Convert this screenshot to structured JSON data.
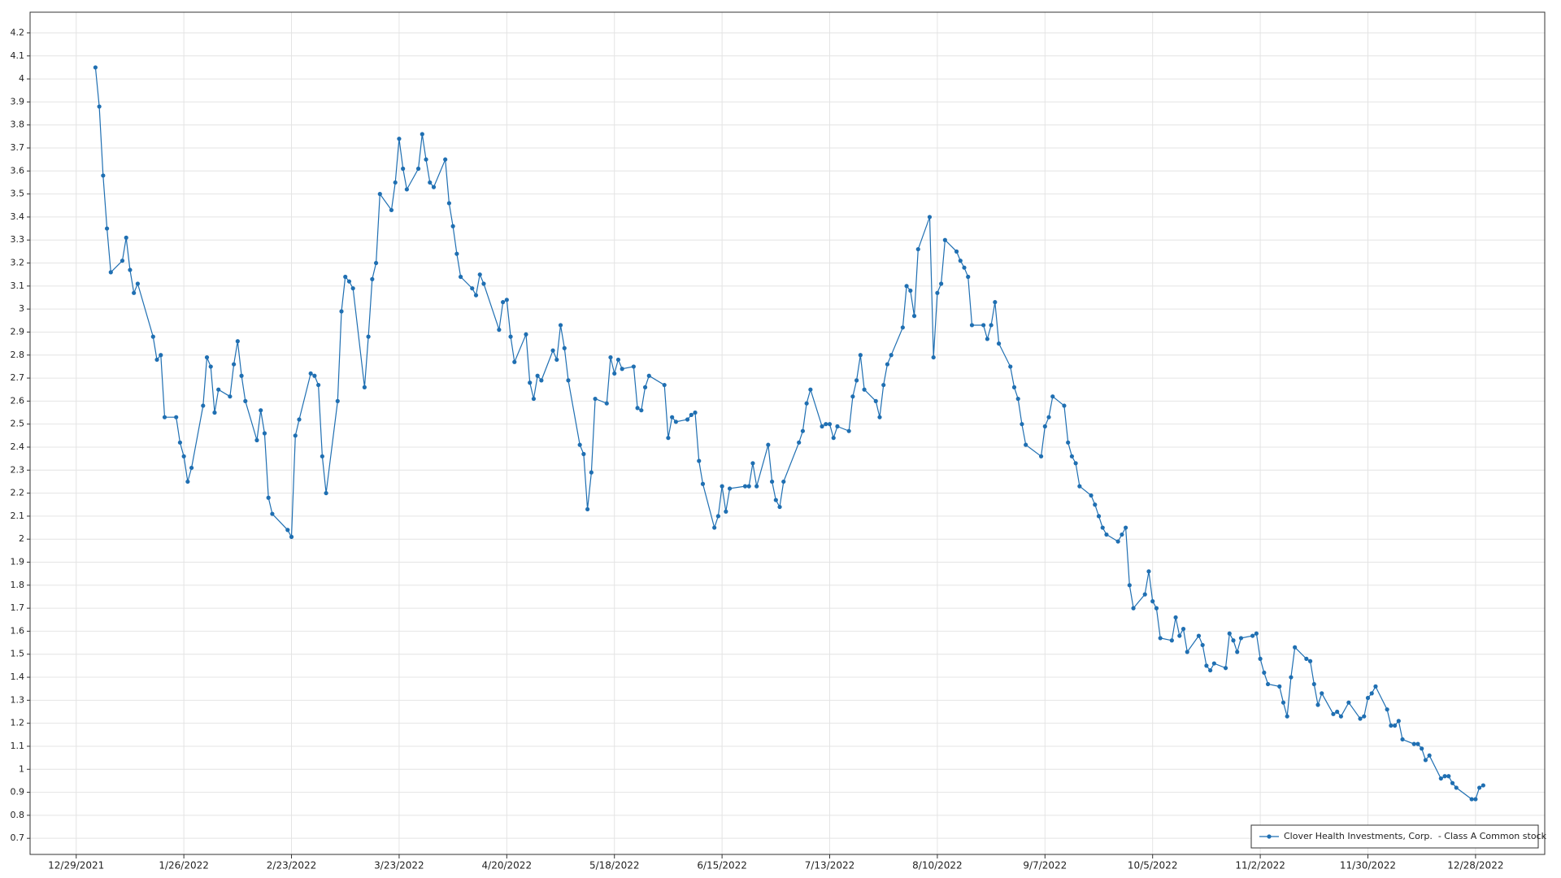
{
  "chart_data": {
    "type": "line",
    "x": [
      "2022-01-03",
      "2022-01-04",
      "2022-01-05",
      "2022-01-06",
      "2022-01-07",
      "2022-01-10",
      "2022-01-11",
      "2022-01-12",
      "2022-01-13",
      "2022-01-14",
      "2022-01-18",
      "2022-01-19",
      "2022-01-20",
      "2022-01-21",
      "2022-01-24",
      "2022-01-25",
      "2022-01-26",
      "2022-01-27",
      "2022-01-28",
      "2022-01-31",
      "2022-02-01",
      "2022-02-02",
      "2022-02-03",
      "2022-02-04",
      "2022-02-07",
      "2022-02-08",
      "2022-02-09",
      "2022-02-10",
      "2022-02-11",
      "2022-02-14",
      "2022-02-15",
      "2022-02-16",
      "2022-02-17",
      "2022-02-18",
      "2022-02-22",
      "2022-02-23",
      "2022-02-24",
      "2022-02-25",
      "2022-02-28",
      "2022-03-01",
      "2022-03-02",
      "2022-03-03",
      "2022-03-04",
      "2022-03-07",
      "2022-03-08",
      "2022-03-09",
      "2022-03-10",
      "2022-03-11",
      "2022-03-14",
      "2022-03-15",
      "2022-03-16",
      "2022-03-17",
      "2022-03-18",
      "2022-03-21",
      "2022-03-22",
      "2022-03-23",
      "2022-03-24",
      "2022-03-25",
      "2022-03-28",
      "2022-03-29",
      "2022-03-30",
      "2022-03-31",
      "2022-04-01",
      "2022-04-04",
      "2022-04-05",
      "2022-04-06",
      "2022-04-07",
      "2022-04-08",
      "2022-04-11",
      "2022-04-12",
      "2022-04-13",
      "2022-04-14",
      "2022-04-18",
      "2022-04-19",
      "2022-04-20",
      "2022-04-21",
      "2022-04-22",
      "2022-04-25",
      "2022-04-26",
      "2022-04-27",
      "2022-04-28",
      "2022-04-29",
      "2022-05-02",
      "2022-05-03",
      "2022-05-04",
      "2022-05-05",
      "2022-05-06",
      "2022-05-09",
      "2022-05-10",
      "2022-05-11",
      "2022-05-12",
      "2022-05-13",
      "2022-05-16",
      "2022-05-17",
      "2022-05-18",
      "2022-05-19",
      "2022-05-20",
      "2022-05-23",
      "2022-05-24",
      "2022-05-25",
      "2022-05-26",
      "2022-05-27",
      "2022-05-31",
      "2022-06-01",
      "2022-06-02",
      "2022-06-03",
      "2022-06-06",
      "2022-06-07",
      "2022-06-08",
      "2022-06-09",
      "2022-06-10",
      "2022-06-13",
      "2022-06-14",
      "2022-06-15",
      "2022-06-16",
      "2022-06-17",
      "2022-06-21",
      "2022-06-22",
      "2022-06-23",
      "2022-06-24",
      "2022-06-27",
      "2022-06-28",
      "2022-06-29",
      "2022-06-30",
      "2022-07-01",
      "2022-07-05",
      "2022-07-06",
      "2022-07-07",
      "2022-07-08",
      "2022-07-11",
      "2022-07-12",
      "2022-07-13",
      "2022-07-14",
      "2022-07-15",
      "2022-07-18",
      "2022-07-19",
      "2022-07-20",
      "2022-07-21",
      "2022-07-22",
      "2022-07-25",
      "2022-07-26",
      "2022-07-27",
      "2022-07-28",
      "2022-07-29",
      "2022-08-01",
      "2022-08-02",
      "2022-08-03",
      "2022-08-04",
      "2022-08-05",
      "2022-08-08",
      "2022-08-09",
      "2022-08-10",
      "2022-08-11",
      "2022-08-12",
      "2022-08-15",
      "2022-08-16",
      "2022-08-17",
      "2022-08-18",
      "2022-08-19",
      "2022-08-22",
      "2022-08-23",
      "2022-08-24",
      "2022-08-25",
      "2022-08-26",
      "2022-08-29",
      "2022-08-30",
      "2022-08-31",
      "2022-09-01",
      "2022-09-02",
      "2022-09-06",
      "2022-09-07",
      "2022-09-08",
      "2022-09-09",
      "2022-09-12",
      "2022-09-13",
      "2022-09-14",
      "2022-09-15",
      "2022-09-16",
      "2022-09-19",
      "2022-09-20",
      "2022-09-21",
      "2022-09-22",
      "2022-09-23",
      "2022-09-26",
      "2022-09-27",
      "2022-09-28",
      "2022-09-29",
      "2022-09-30",
      "2022-10-03",
      "2022-10-04",
      "2022-10-05",
      "2022-10-06",
      "2022-10-07",
      "2022-10-10",
      "2022-10-11",
      "2022-10-12",
      "2022-10-13",
      "2022-10-14",
      "2022-10-17",
      "2022-10-18",
      "2022-10-19",
      "2022-10-20",
      "2022-10-21",
      "2022-10-24",
      "2022-10-25",
      "2022-10-26",
      "2022-10-27",
      "2022-10-28",
      "2022-10-31",
      "2022-11-01",
      "2022-11-02",
      "2022-11-03",
      "2022-11-04",
      "2022-11-07",
      "2022-11-08",
      "2022-11-09",
      "2022-11-10",
      "2022-11-11",
      "2022-11-14",
      "2022-11-15",
      "2022-11-16",
      "2022-11-17",
      "2022-11-18",
      "2022-11-21",
      "2022-11-22",
      "2022-11-23",
      "2022-11-25",
      "2022-11-28",
      "2022-11-29",
      "2022-11-30",
      "2022-12-01",
      "2022-12-02",
      "2022-12-05",
      "2022-12-06",
      "2022-12-07",
      "2022-12-08",
      "2022-12-09",
      "2022-12-12",
      "2022-12-13",
      "2022-12-14",
      "2022-12-15",
      "2022-12-16",
      "2022-12-19",
      "2022-12-20",
      "2022-12-21",
      "2022-12-22",
      "2022-12-23",
      "2022-12-27",
      "2022-12-28",
      "2022-12-29",
      "2022-12-30"
    ],
    "series": [
      {
        "name": "Clover Health Investments, Corp.  - Class A Common stock",
        "color": "#1f6fb2",
        "values": [
          4.05,
          3.88,
          3.58,
          3.35,
          3.16,
          3.21,
          3.31,
          3.17,
          3.07,
          3.11,
          2.88,
          2.78,
          2.8,
          2.53,
          2.53,
          2.42,
          2.36,
          2.25,
          2.31,
          2.58,
          2.79,
          2.75,
          2.55,
          2.65,
          2.62,
          2.76,
          2.86,
          2.71,
          2.6,
          2.43,
          2.56,
          2.46,
          2.18,
          2.11,
          2.04,
          2.01,
          2.45,
          2.52,
          2.72,
          2.71,
          2.67,
          2.36,
          2.2,
          2.6,
          2.99,
          3.14,
          3.12,
          3.09,
          2.66,
          2.88,
          3.13,
          3.2,
          3.5,
          3.43,
          3.55,
          3.74,
          3.61,
          3.52,
          3.61,
          3.76,
          3.65,
          3.55,
          3.53,
          3.65,
          3.46,
          3.36,
          3.24,
          3.14,
          3.09,
          3.06,
          3.15,
          3.11,
          2.91,
          3.03,
          3.04,
          2.88,
          2.77,
          2.89,
          2.68,
          2.61,
          2.71,
          2.69,
          2.82,
          2.78,
          2.93,
          2.83,
          2.69,
          2.41,
          2.37,
          2.13,
          2.29,
          2.61,
          2.59,
          2.79,
          2.72,
          2.78,
          2.74,
          2.75,
          2.57,
          2.56,
          2.66,
          2.71,
          2.67,
          2.44,
          2.53,
          2.51,
          2.52,
          2.54,
          2.55,
          2.34,
          2.24,
          2.05,
          2.1,
          2.23,
          2.12,
          2.22,
          2.23,
          2.23,
          2.33,
          2.23,
          2.41,
          2.25,
          2.17,
          2.14,
          2.25,
          2.42,
          2.47,
          2.59,
          2.65,
          2.49,
          2.5,
          2.5,
          2.44,
          2.49,
          2.47,
          2.62,
          2.69,
          2.8,
          2.65,
          2.6,
          2.53,
          2.67,
          2.76,
          2.8,
          2.92,
          3.1,
          3.08,
          2.97,
          3.26,
          3.4,
          2.79,
          3.07,
          3.11,
          3.3,
          3.25,
          3.21,
          3.18,
          3.14,
          2.93,
          2.93,
          2.87,
          2.93,
          3.03,
          2.85,
          2.75,
          2.66,
          2.61,
          2.5,
          2.41,
          2.36,
          2.49,
          2.53,
          2.62,
          2.58,
          2.42,
          2.36,
          2.33,
          2.23,
          2.19,
          2.15,
          2.1,
          2.05,
          2.02,
          1.99,
          2.02,
          2.05,
          1.8,
          1.7,
          1.76,
          1.86,
          1.73,
          1.7,
          1.57,
          1.56,
          1.66,
          1.58,
          1.61,
          1.51,
          1.58,
          1.54,
          1.45,
          1.43,
          1.46,
          1.44,
          1.59,
          1.56,
          1.51,
          1.57,
          1.58,
          1.59,
          1.48,
          1.42,
          1.37,
          1.36,
          1.29,
          1.23,
          1.4,
          1.53,
          1.48,
          1.47,
          1.37,
          1.28,
          1.33,
          1.24,
          1.25,
          1.23,
          1.29,
          1.22,
          1.23,
          1.31,
          1.33,
          1.36,
          1.26,
          1.19,
          1.19,
          1.21,
          1.13,
          1.11,
          1.11,
          1.09,
          1.04,
          1.06,
          0.96,
          0.97,
          0.97,
          0.94,
          0.92,
          0.87,
          0.87,
          0.92,
          0.93
        ]
      }
    ],
    "xlim": [
      "2021-12-17",
      "2023-01-15"
    ],
    "xticks": [
      {
        "value": "2021-12-29",
        "label": "12/29/2021"
      },
      {
        "value": "2022-01-26",
        "label": "1/26/2022"
      },
      {
        "value": "2022-02-23",
        "label": "2/23/2022"
      },
      {
        "value": "2022-03-23",
        "label": "3/23/2022"
      },
      {
        "value": "2022-04-20",
        "label": "4/20/2022"
      },
      {
        "value": "2022-05-18",
        "label": "5/18/2022"
      },
      {
        "value": "2022-06-15",
        "label": "6/15/2022"
      },
      {
        "value": "2022-07-13",
        "label": "7/13/2022"
      },
      {
        "value": "2022-08-10",
        "label": "8/10/2022"
      },
      {
        "value": "2022-09-07",
        "label": "9/7/2022"
      },
      {
        "value": "2022-10-05",
        "label": "10/5/2022"
      },
      {
        "value": "2022-11-02",
        "label": "11/2/2022"
      },
      {
        "value": "2022-11-30",
        "label": "11/30/2022"
      },
      {
        "value": "2022-12-28",
        "label": "12/28/2022"
      }
    ],
    "ylim": [
      0.63,
      4.29
    ],
    "yticks": [
      0.7,
      0.8,
      0.9,
      1,
      1.1,
      1.2,
      1.3,
      1.4,
      1.5,
      1.6,
      1.7,
      1.8,
      1.9,
      2,
      2.1,
      2.2,
      2.3,
      2.4,
      2.5,
      2.6,
      2.7,
      2.8,
      2.9,
      3,
      3.1,
      3.2,
      3.3,
      3.4,
      3.5,
      3.6,
      3.7,
      3.8,
      3.9,
      4,
      4.1,
      4.2
    ],
    "grid": true,
    "legend": "lower right"
  }
}
